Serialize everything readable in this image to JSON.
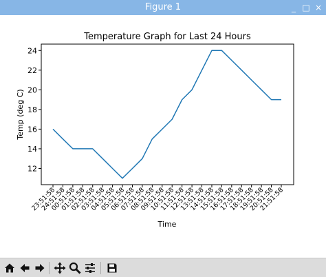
{
  "window": {
    "title": "Figure 1",
    "controls": {
      "minimize": "_",
      "maximize": "□",
      "close": "×"
    }
  },
  "toolbar": {
    "items": [
      {
        "icon": "home-icon"
      },
      {
        "icon": "back-arrow-icon"
      },
      {
        "icon": "forward-arrow-icon"
      },
      {
        "icon": "pan-icon"
      },
      {
        "icon": "zoom-icon"
      },
      {
        "icon": "subplots-config-icon"
      },
      {
        "icon": "save-icon"
      }
    ]
  },
  "chart_data": {
    "type": "line",
    "title": "Temperature Graph for Last 24 Hours",
    "xlabel": "Time",
    "ylabel": "Temp (deg C)",
    "categories": [
      "23:51:58",
      "24:51:58",
      "00:51:58",
      "01:51:58",
      "02:51:58",
      "03:51:58",
      "04:51:58",
      "05:51:58",
      "06:51:58",
      "07:51:58",
      "08:51:58",
      "09:51:58",
      "10:51:58",
      "11:51:58",
      "12:51:58",
      "13:51:58",
      "14:51:58",
      "15:51:58",
      "16:51:58",
      "17:51:58",
      "18:51:58",
      "19:51:58",
      "20:51:58",
      "21:51:58"
    ],
    "series": [
      {
        "values": [
          16,
          15,
          14,
          14,
          14,
          13,
          12,
          11,
          12,
          13,
          15,
          16,
          17,
          19,
          20,
          22,
          24,
          24,
          23,
          22,
          21,
          20,
          19,
          19
        ],
        "color": "#1f77b4"
      }
    ],
    "ylim": [
      10.35,
      24.65
    ],
    "yticks": [
      12,
      14,
      16,
      18,
      20,
      22,
      24
    ],
    "grid": false
  }
}
